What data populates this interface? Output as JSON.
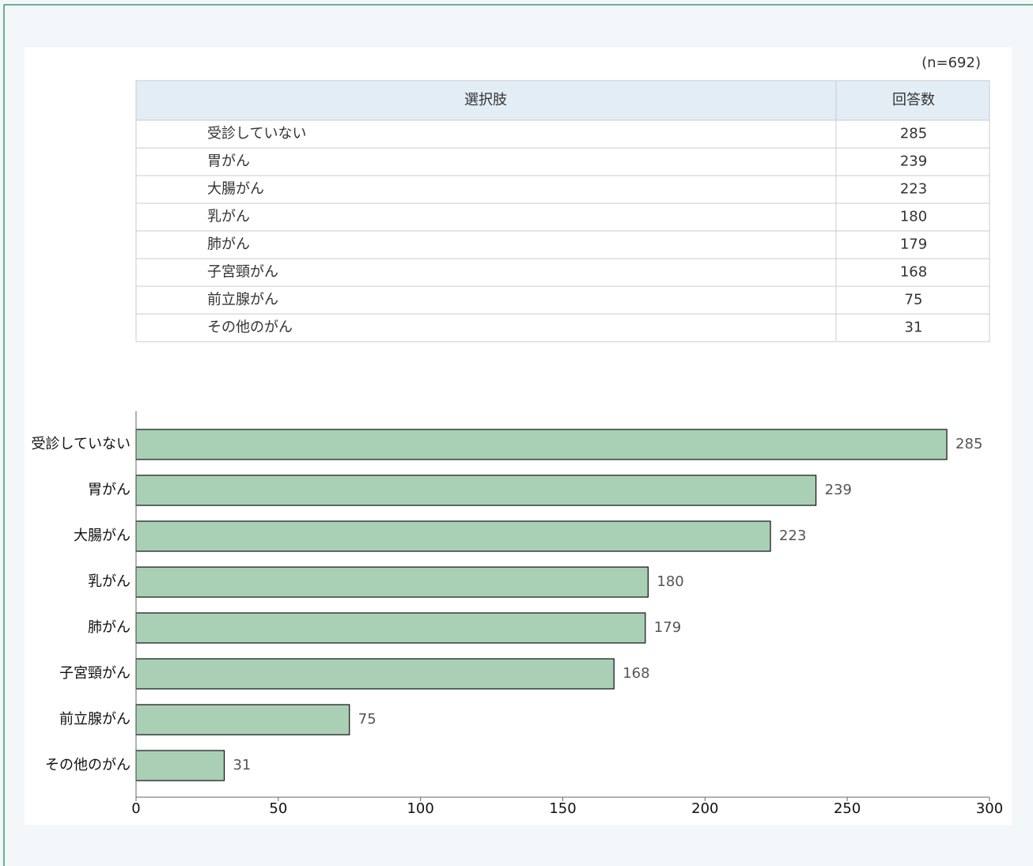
{
  "note": "(n=692)",
  "table": {
    "header": [
      "選択肢",
      "回答数"
    ]
  },
  "chart_data": {
    "type": "bar",
    "categories": [
      "受診していない",
      "胃がん",
      "大腸がん",
      "乳がん",
      "肺がん",
      "子宮頸がん",
      "前立腺がん",
      "その他のがん"
    ],
    "values": [
      285,
      239,
      223,
      180,
      179,
      168,
      75,
      31
    ],
    "color": "#a9d0b5",
    "xlim": [
      0,
      300
    ],
    "xticks": [
      0,
      50,
      100,
      150,
      200,
      250,
      300
    ]
  }
}
